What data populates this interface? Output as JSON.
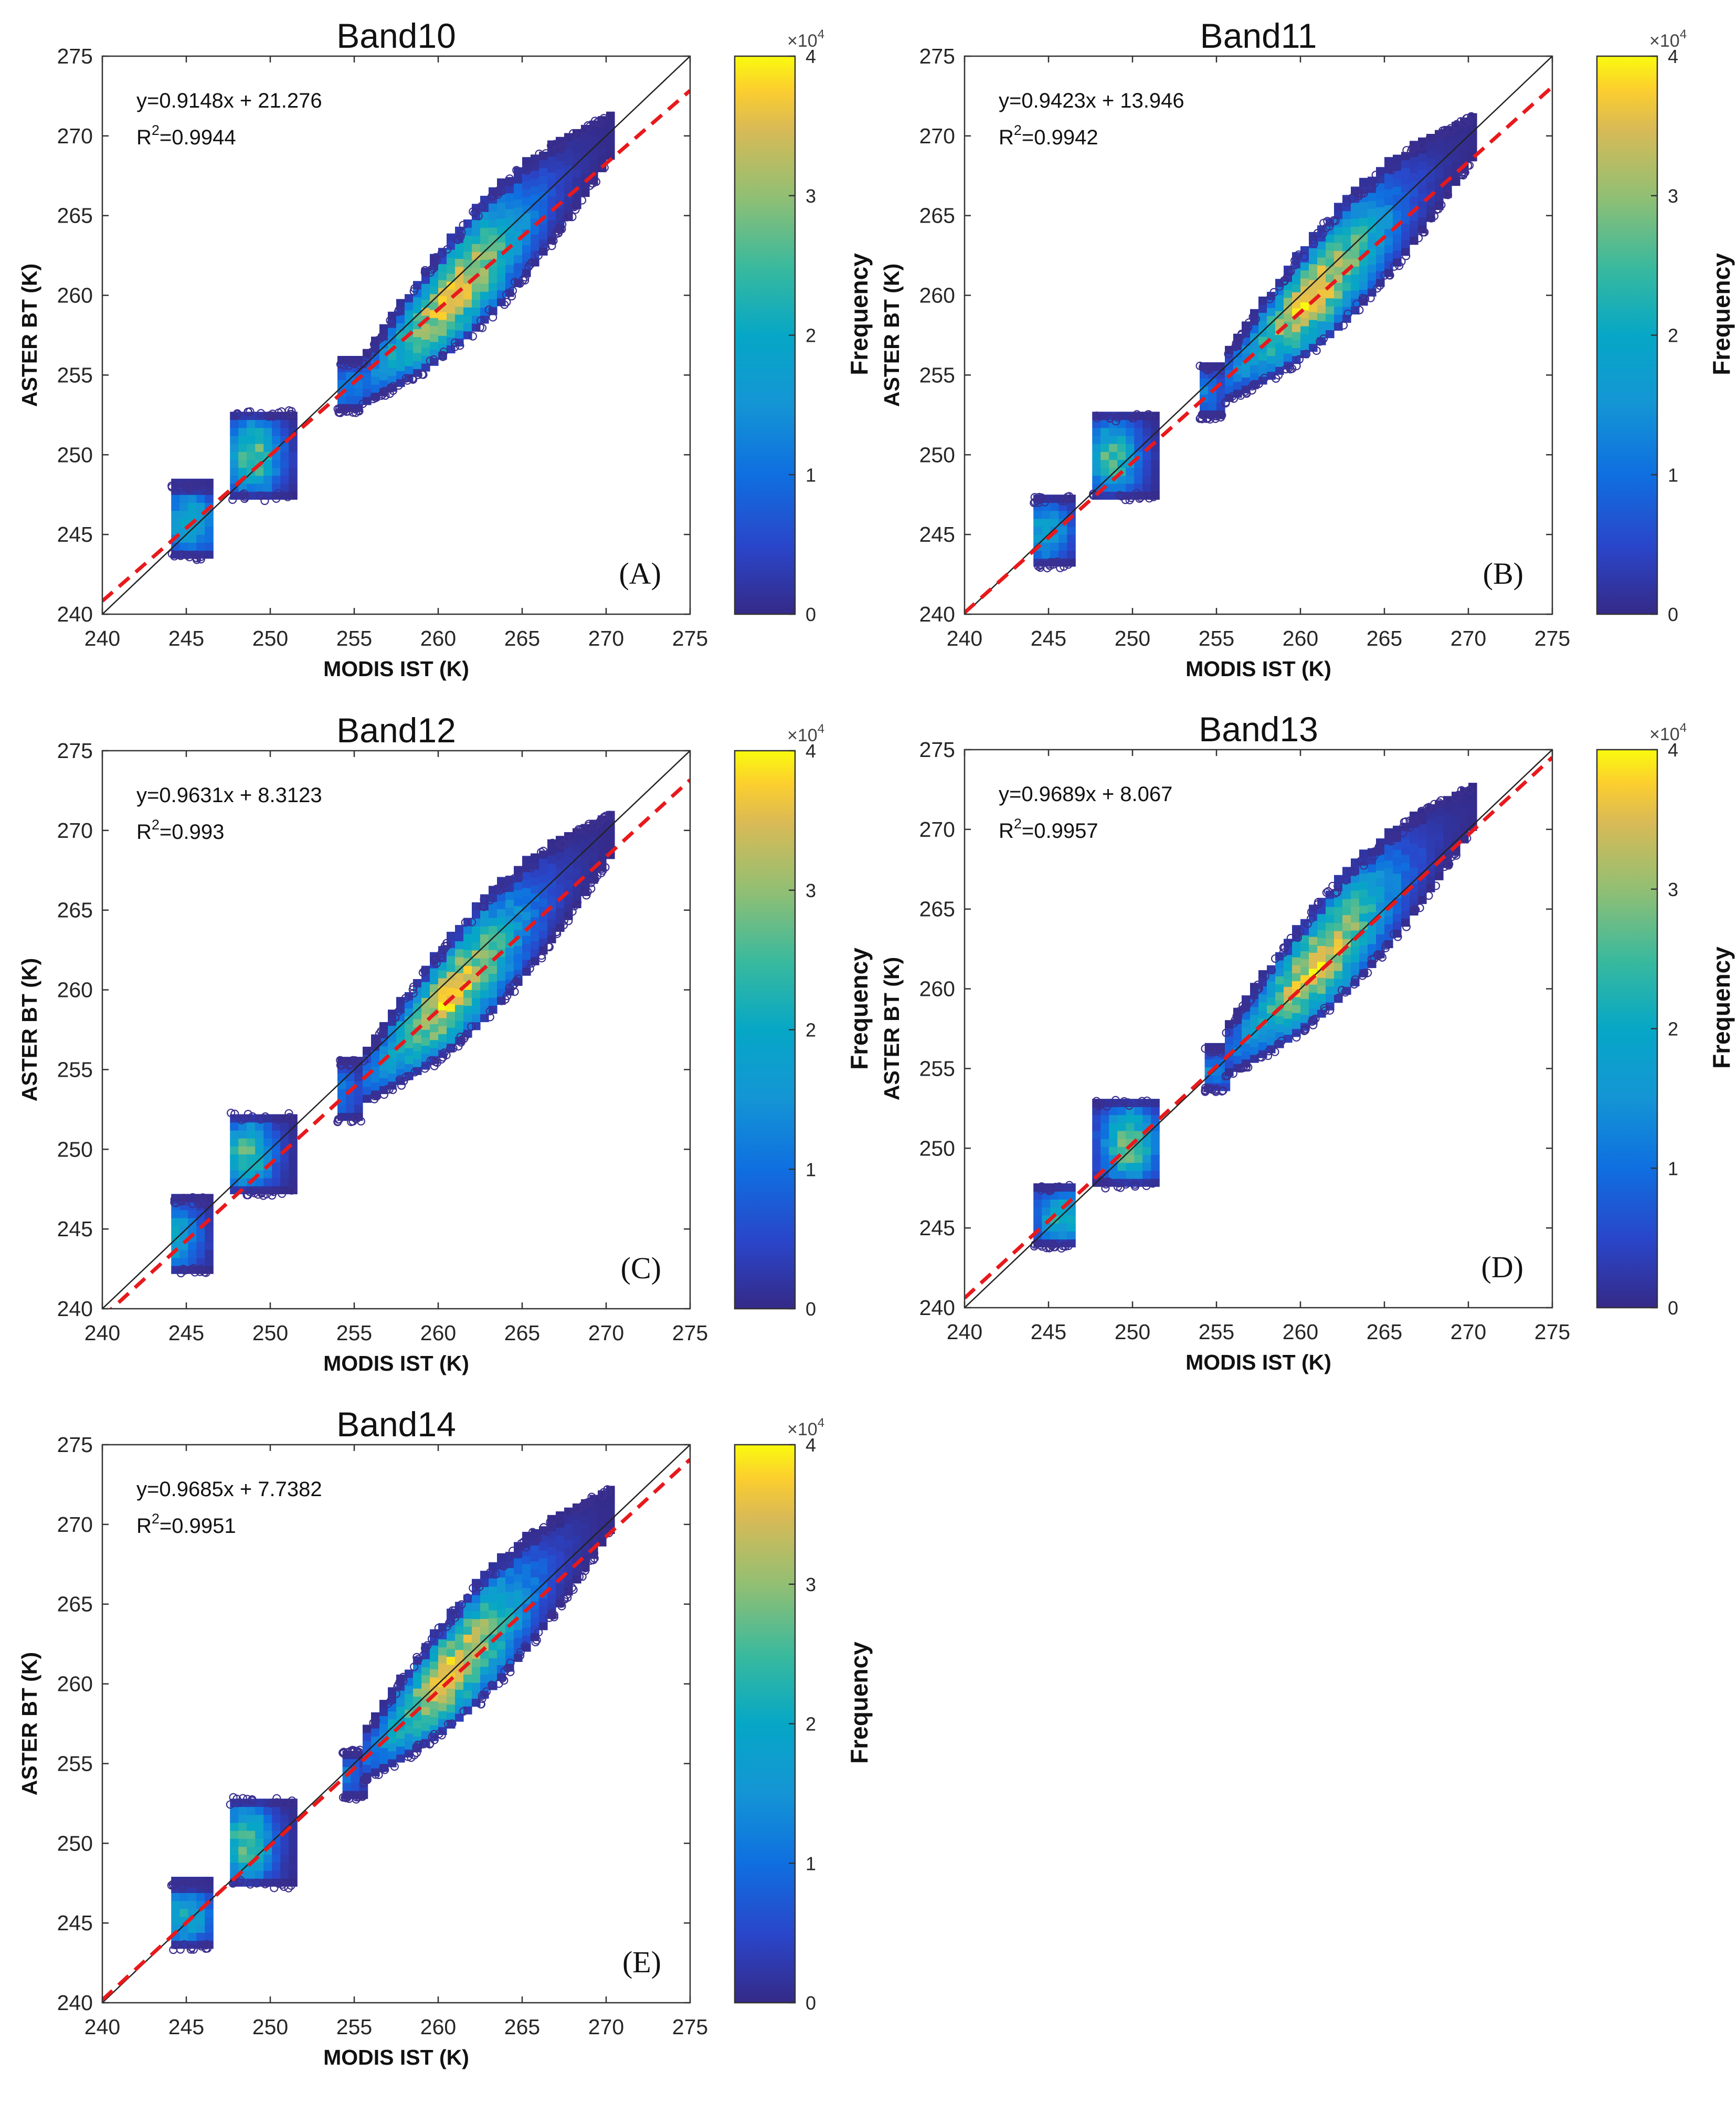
{
  "chart_data": [
    {
      "type": "scatter",
      "title": "Band10",
      "xlabel": "MODIS IST (K)",
      "ylabel": "ASTER BT (K)",
      "xlim": [
        240,
        275
      ],
      "ylim": [
        240,
        275
      ],
      "xticks": [
        "240",
        "245",
        "250",
        "255",
        "260",
        "265",
        "270",
        "275"
      ],
      "yticks": [
        "240",
        "245",
        "250",
        "255",
        "260",
        "265",
        "270",
        "275"
      ],
      "equation": "y=0.9148x + 21.276",
      "r2_prefix": "R",
      "r2_exp": "2",
      "r2_value": "=0.9944",
      "slope": 0.9148,
      "intercept": 21.276,
      "panel_label": "(A)",
      "colorbar": {
        "label": "Frequency",
        "multiplier_base": "×10",
        "multiplier_exp": "4",
        "ticks": [
          "0",
          "1",
          "2",
          "3",
          "4"
        ],
        "min": 0,
        "max": 4
      },
      "clusters": [
        {
          "x": [
            244.1,
            246.3
          ],
          "y": [
            243.5,
            248.1
          ],
          "peak": 245.2,
          "density": 0.55
        },
        {
          "x": [
            247.6,
            251.3
          ],
          "y": [
            247.2,
            252.7
          ],
          "peak": 249.0,
          "density": 0.75
        },
        {
          "x": [
            254.0,
            255.4
          ],
          "y": [
            252.7,
            255.8
          ],
          "peak": 254.5,
          "density": 0.35
        },
        {
          "x": [
            255.5,
            270.3
          ],
          "y": [
            253.8,
            269.4
          ],
          "peak": 260.8,
          "density": 0.95
        }
      ]
    },
    {
      "type": "scatter",
      "title": "Band11",
      "xlabel": "MODIS IST (K)",
      "ylabel": "ASTER BT (K)",
      "xlim": [
        240,
        275
      ],
      "ylim": [
        240,
        275
      ],
      "xticks": [
        "240",
        "245",
        "250",
        "255",
        "260",
        "265",
        "270",
        "275"
      ],
      "yticks": [
        "240",
        "245",
        "250",
        "255",
        "260",
        "265",
        "270",
        "275"
      ],
      "equation": "y=0.9423x + 13.946",
      "r2_prefix": "R",
      "r2_exp": "2",
      "r2_value": "=0.9942",
      "slope": 0.9423,
      "intercept": 13.946,
      "panel_label": "(B)",
      "colorbar": {
        "label": "Frequency",
        "multiplier_base": "×10",
        "multiplier_exp": "4",
        "ticks": [
          "0",
          "1",
          "2",
          "3",
          "4"
        ],
        "min": 0,
        "max": 4
      },
      "clusters": [
        {
          "x": [
            244.1,
            246.3
          ],
          "y": [
            243.0,
            247.3
          ],
          "peak": 244.8,
          "density": 0.5
        },
        {
          "x": [
            247.6,
            251.3
          ],
          "y": [
            247.2,
            252.5
          ],
          "peak": 248.8,
          "density": 0.7
        },
        {
          "x": [
            254.0,
            255.4
          ],
          "y": [
            252.3,
            255.5
          ],
          "peak": 254.0,
          "density": 0.35
        },
        {
          "x": [
            255.5,
            270.3
          ],
          "y": [
            254.0,
            269.3
          ],
          "peak": 260.8,
          "density": 0.95
        }
      ]
    },
    {
      "type": "scatter",
      "title": "Band12",
      "xlabel": "MODIS IST (K)",
      "ylabel": "ASTER BT (K)",
      "xlim": [
        240,
        275
      ],
      "ylim": [
        240,
        275
      ],
      "xticks": [
        "240",
        "245",
        "250",
        "255",
        "260",
        "265",
        "270",
        "275"
      ],
      "yticks": [
        "240",
        "245",
        "250",
        "255",
        "260",
        "265",
        "270",
        "275"
      ],
      "equation": "y=0.9631x + 8.3123",
      "r2_prefix": "R",
      "r2_exp": "2",
      "r2_value": "=0.993",
      "slope": 0.9631,
      "intercept": 8.3123,
      "panel_label": "(C)",
      "colorbar": {
        "label": "Frequency",
        "multiplier_base": "×10",
        "multiplier_exp": "4",
        "ticks": [
          "0",
          "1",
          "2",
          "3",
          "4"
        ],
        "min": 0,
        "max": 4
      },
      "clusters": [
        {
          "x": [
            244.1,
            246.3
          ],
          "y": [
            242.2,
            246.9
          ],
          "peak": 244.2,
          "density": 0.55
        },
        {
          "x": [
            247.6,
            251.3
          ],
          "y": [
            247.2,
            252.2
          ],
          "peak": 248.6,
          "density": 0.7
        },
        {
          "x": [
            254.0,
            255.4
          ],
          "y": [
            251.8,
            255.5
          ],
          "peak": 253.7,
          "density": 0.35
        },
        {
          "x": [
            255.5,
            270.3
          ],
          "y": [
            253.6,
            269.1
          ],
          "peak": 260.7,
          "density": 0.95
        }
      ]
    },
    {
      "type": "scatter",
      "title": "Band13",
      "xlabel": "MODIS IST (K)",
      "ylabel": "ASTER BT (K)",
      "xlim": [
        240,
        275
      ],
      "ylim": [
        240,
        275
      ],
      "xticks": [
        "240",
        "245",
        "250",
        "255",
        "260",
        "265",
        "270",
        "275"
      ],
      "yticks": [
        "240",
        "245",
        "250",
        "255",
        "260",
        "265",
        "270",
        "275"
      ],
      "equation": "y=0.9689x + 8.067",
      "r2_prefix": "R",
      "r2_exp": "2",
      "r2_value": "=0.9957",
      "slope": 0.9689,
      "intercept": 8.067,
      "panel_label": "(D)",
      "colorbar": {
        "label": "Frequency",
        "multiplier_base": "×10",
        "multiplier_exp": "4",
        "ticks": [
          "0",
          "1",
          "2",
          "3",
          "4"
        ],
        "min": 0,
        "max": 4
      },
      "clusters": [
        {
          "x": [
            244.1,
            246.3
          ],
          "y": [
            243.8,
            247.6
          ],
          "peak": 245.8,
          "density": 0.6
        },
        {
          "x": [
            247.6,
            251.3
          ],
          "y": [
            247.6,
            253.0
          ],
          "peak": 249.8,
          "density": 0.8
        },
        {
          "x": [
            254.3,
            255.4
          ],
          "y": [
            253.6,
            256.2
          ],
          "peak": 254.8,
          "density": 0.35
        },
        {
          "x": [
            255.5,
            270.3
          ],
          "y": [
            255.2,
            270.8
          ],
          "peak": 261.0,
          "density": 0.95
        }
      ]
    },
    {
      "type": "scatter",
      "title": "Band14",
      "xlabel": "MODIS IST (K)",
      "ylabel": "ASTER BT (K)",
      "xlim": [
        240,
        275
      ],
      "ylim": [
        240,
        275
      ],
      "xticks": [
        "240",
        "245",
        "250",
        "255",
        "260",
        "265",
        "270",
        "275"
      ],
      "yticks": [
        "240",
        "245",
        "250",
        "255",
        "260",
        "265",
        "270",
        "275"
      ],
      "equation": "y=0.9685x + 7.7382",
      "r2_prefix": "R",
      "r2_exp": "2",
      "r2_value": "=0.9951",
      "slope": 0.9685,
      "intercept": 7.7382,
      "panel_label": "(E)",
      "colorbar": {
        "label": "Frequency",
        "multiplier_base": "×10",
        "multiplier_exp": "4",
        "ticks": [
          "0",
          "1",
          "2",
          "3",
          "4"
        ],
        "min": 0,
        "max": 4
      },
      "clusters": [
        {
          "x": [
            244.1,
            246.3
          ],
          "y": [
            243.4,
            247.5
          ],
          "peak": 245.0,
          "density": 0.55
        },
        {
          "x": [
            247.6,
            251.3
          ],
          "y": [
            247.3,
            252.8
          ],
          "peak": 248.6,
          "density": 0.75
        },
        {
          "x": [
            254.3,
            255.5
          ],
          "y": [
            252.8,
            255.8
          ],
          "peak": 254.0,
          "density": 0.35
        },
        {
          "x": [
            255.5,
            270.3
          ],
          "y": [
            254.6,
            270.3
          ],
          "peak": 260.8,
          "density": 0.95
        }
      ]
    }
  ]
}
